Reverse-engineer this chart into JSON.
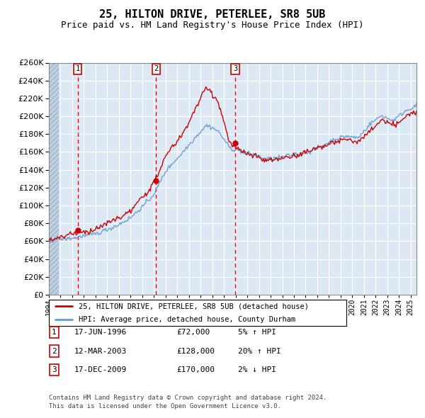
{
  "title": "25, HILTON DRIVE, PETERLEE, SR8 5UB",
  "subtitle": "Price paid vs. HM Land Registry's House Price Index (HPI)",
  "footer1": "Contains HM Land Registry data © Crown copyright and database right 2024.",
  "footer2": "This data is licensed under the Open Government Licence v3.0.",
  "legend_line1": "25, HILTON DRIVE, PETERLEE, SR8 5UB (detached house)",
  "legend_line2": "HPI: Average price, detached house, County Durham",
  "sales": [
    {
      "num": 1,
      "date": "17-JUN-1996",
      "price": 72000,
      "pct": "5%",
      "dir": "↑",
      "year": 1996.46
    },
    {
      "num": 2,
      "date": "12-MAR-2003",
      "price": 128000,
      "pct": "20%",
      "dir": "↑",
      "year": 2003.19
    },
    {
      "num": 3,
      "date": "17-DEC-2009",
      "price": 170000,
      "pct": "2%",
      "dir": "↓",
      "year": 2009.96
    }
  ],
  "ylim": [
    0,
    260000
  ],
  "yticks": [
    0,
    20000,
    40000,
    60000,
    80000,
    100000,
    120000,
    140000,
    160000,
    180000,
    200000,
    220000,
    240000,
    260000
  ],
  "bg_color": "#dce9f5",
  "line_red": "#cc0000",
  "line_blue": "#6699cc",
  "grid_color": "#ffffff",
  "sale_marker_color": "#cc0000",
  "dashed_line_color": "#cc0000",
  "title_fontsize": 11,
  "subtitle_fontsize": 9,
  "tick_fontsize": 7,
  "ytick_fontsize": 8
}
